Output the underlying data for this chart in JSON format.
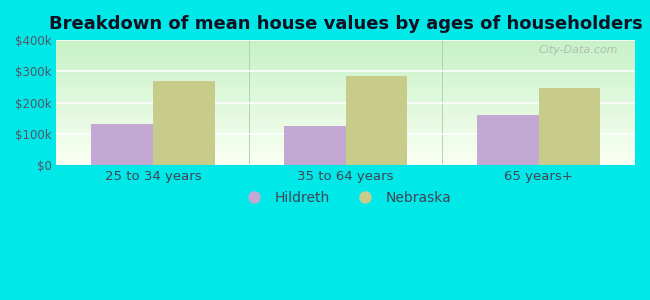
{
  "title": "Breakdown of mean house values by ages of householders",
  "categories": [
    "25 to 34 years",
    "35 to 64 years",
    "65 years+"
  ],
  "hildreth_values": [
    130000,
    125000,
    160000
  ],
  "nebraska_values": [
    270000,
    285000,
    245000
  ],
  "hildreth_color": "#c4a8d4",
  "nebraska_color": "#c8cc8a",
  "ylim": [
    0,
    400000
  ],
  "yticks": [
    0,
    100000,
    200000,
    300000,
    400000
  ],
  "ytick_labels": [
    "$0",
    "$100k",
    "$200k",
    "$300k",
    "$400k"
  ],
  "legend_labels": [
    "Hildreth",
    "Nebraska"
  ],
  "background_outer": "#00e8e8",
  "bar_width": 0.32,
  "title_fontsize": 13,
  "watermark": "City-Data.com",
  "grid_color": "#dddddd",
  "plot_bg_top": "#c8eec8",
  "plot_bg_bottom": "#f0fff0"
}
